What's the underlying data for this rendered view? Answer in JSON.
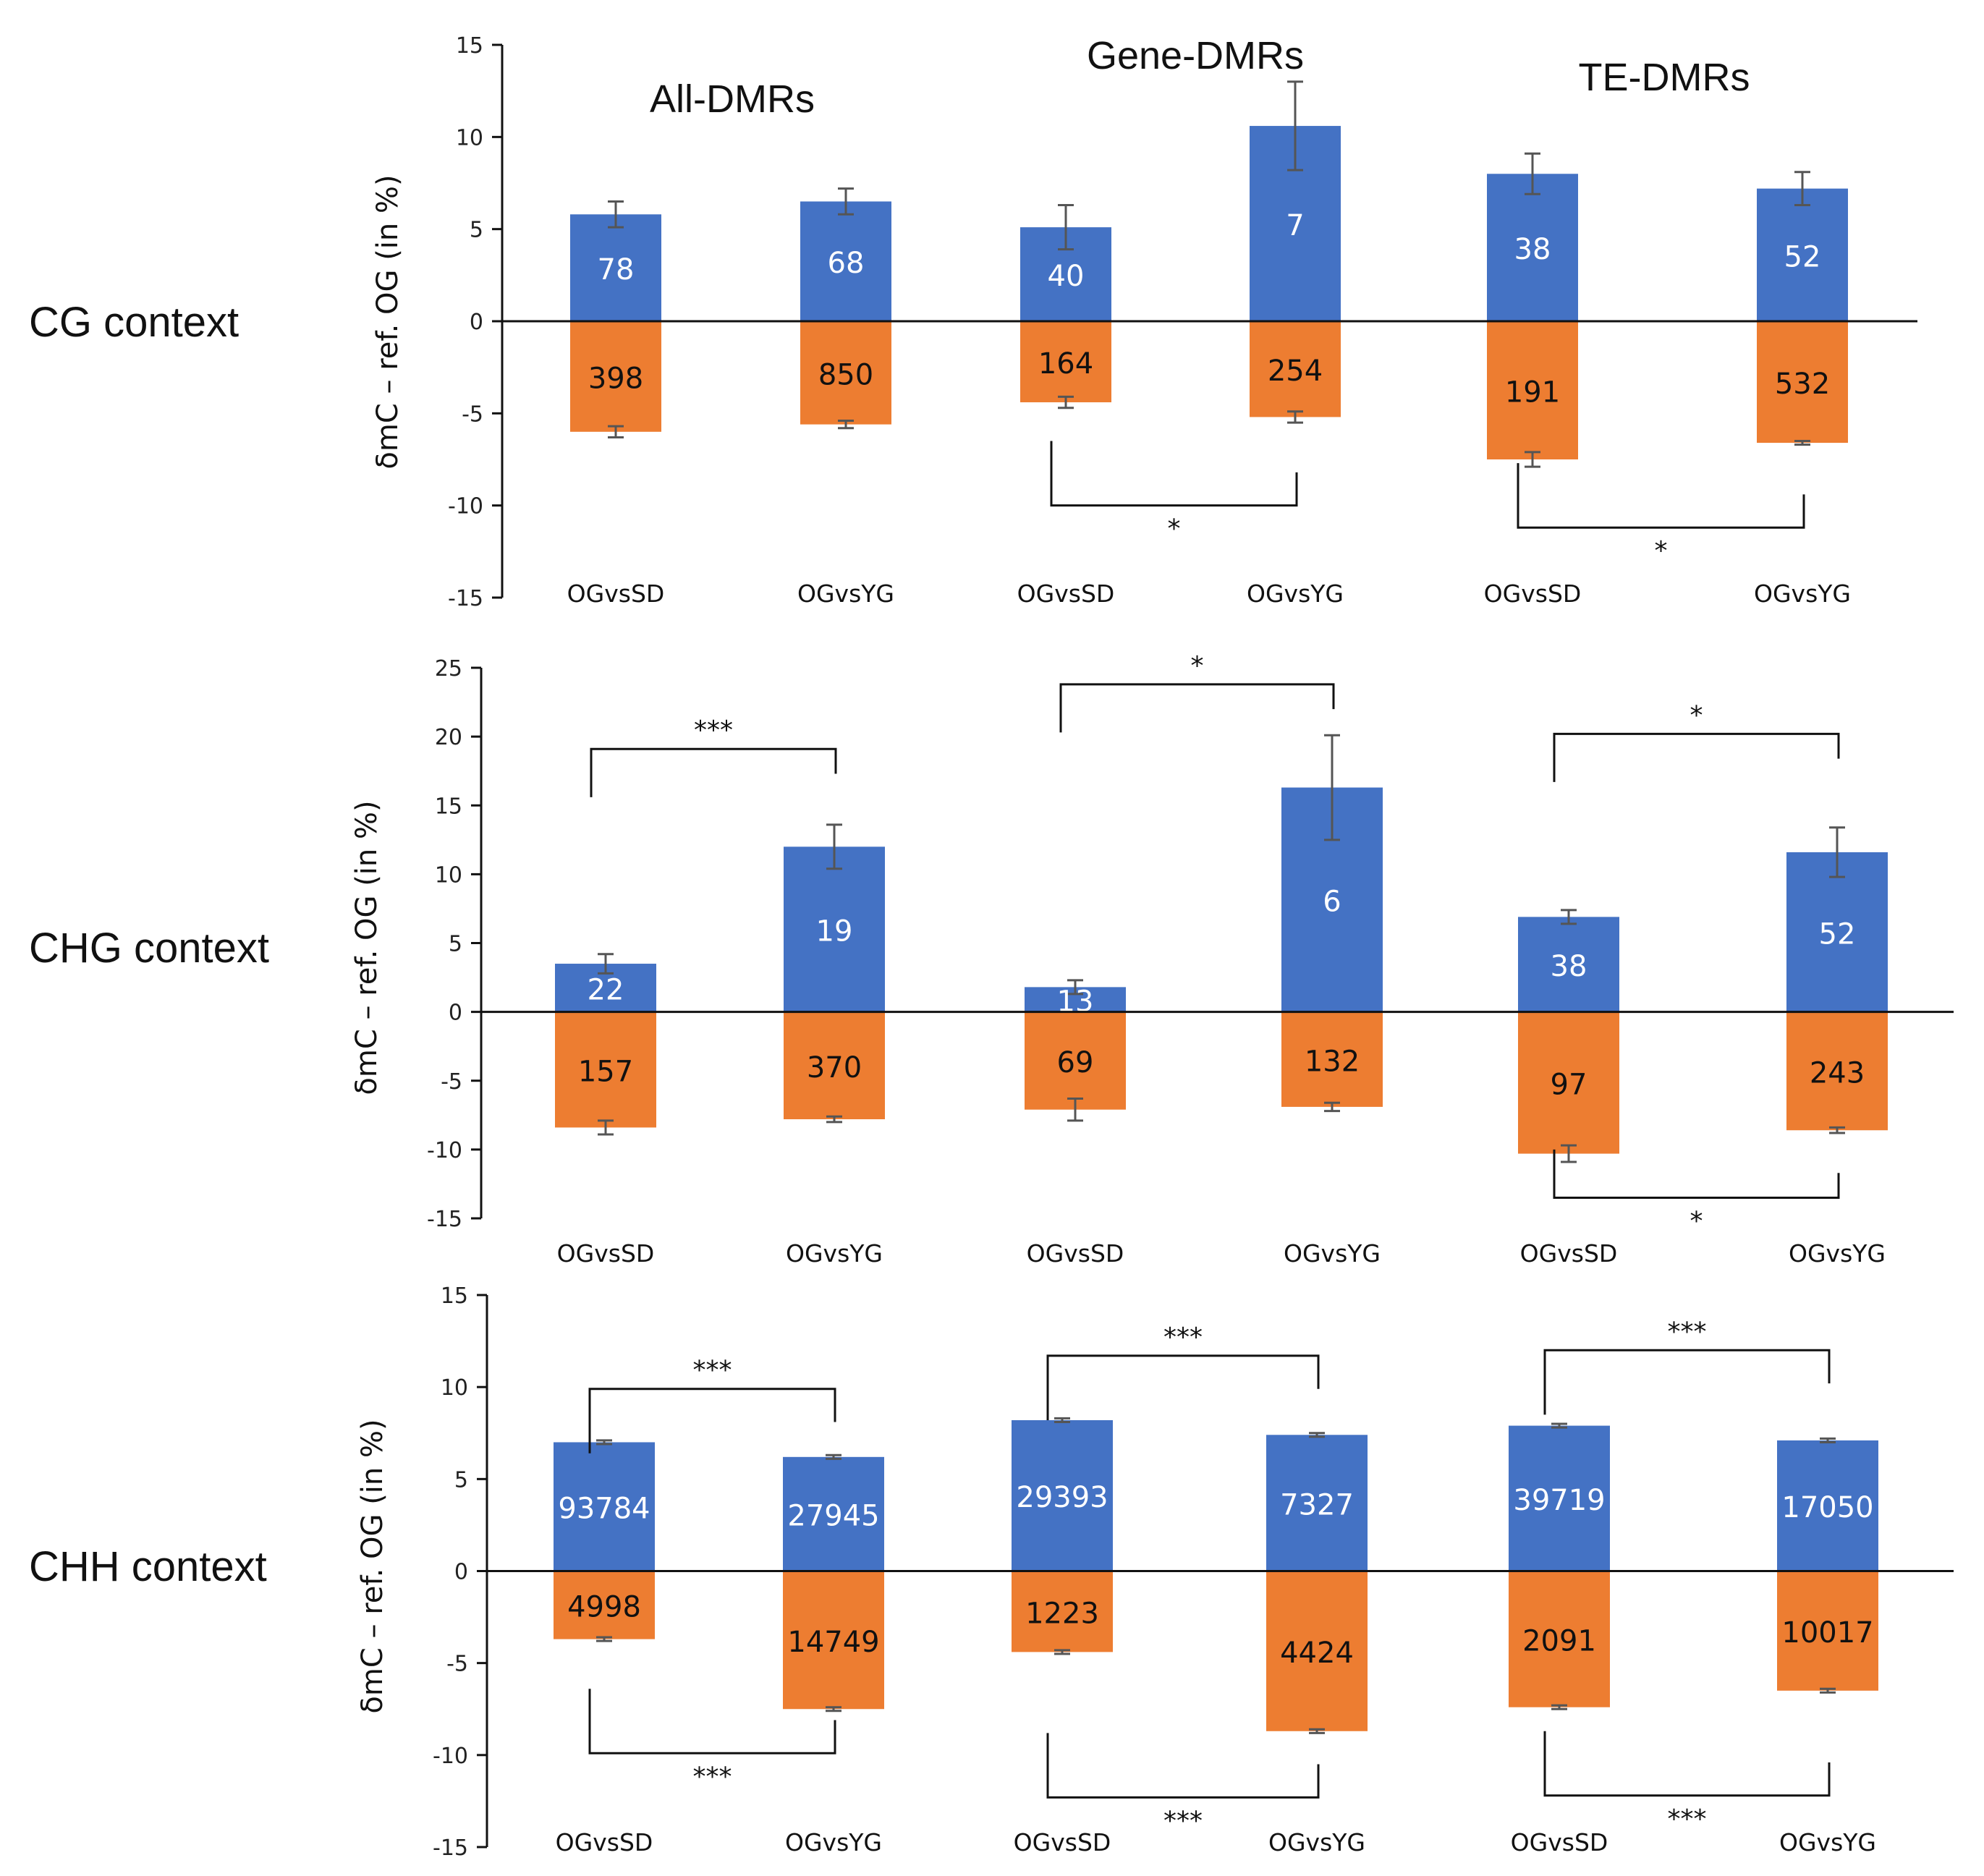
{
  "chart_data": {
    "type": "bar",
    "title": "",
    "ylabel": "δmC – ref. OG (in %)",
    "grid": false,
    "colors": {
      "hyper": "#4472C4",
      "hypo": "#ED7D31",
      "hyper_label": "#ffffff",
      "hypo_label": "#111111",
      "error_bar": "#555555"
    },
    "group_titles": [
      "All-DMRs",
      "Gene-DMRs",
      "TE-DMRs"
    ],
    "categories": [
      "OGvsSD",
      "OGvsYG",
      "OGvsSD",
      "OGvsYG",
      "OGvsSD",
      "OGvsYG"
    ],
    "panels": [
      {
        "row_label": "CG context",
        "ylim": [
          -15,
          15
        ],
        "yticks": [
          15,
          10,
          5,
          0,
          -5,
          -10,
          -15
        ],
        "series": [
          {
            "name": "hyper",
            "values": [
              5.8,
              6.5,
              5.1,
              10.6,
              8.0,
              7.2
            ],
            "errors": [
              0.7,
              0.7,
              1.2,
              2.4,
              1.1,
              0.9
            ],
            "counts": [
              "78",
              "68",
              "40",
              "7",
              "38",
              "52"
            ]
          },
          {
            "name": "hypo",
            "values": [
              -6.0,
              -5.6,
              -4.4,
              -5.2,
              -7.5,
              -6.6
            ],
            "errors": [
              0.3,
              0.2,
              0.3,
              0.3,
              0.4,
              0.1
            ],
            "counts": [
              "398",
              "850",
              "164",
              "254",
              "191",
              "532"
            ]
          }
        ],
        "significance": [
          {
            "from": 2,
            "to": 3,
            "side": "bottom",
            "label": "*",
            "level": -10
          },
          {
            "from": 4,
            "to": 5,
            "side": "bottom",
            "label": "*",
            "level": -11.2
          }
        ]
      },
      {
        "row_label": "CHG context",
        "ylim": [
          -15,
          25
        ],
        "yticks": [
          25,
          20,
          15,
          10,
          5,
          0,
          -5,
          -10,
          -15
        ],
        "series": [
          {
            "name": "hyper",
            "values": [
              3.5,
              12.0,
              1.8,
              16.3,
              6.9,
              11.6
            ],
            "errors": [
              0.7,
              1.6,
              0.5,
              3.8,
              0.5,
              1.8
            ],
            "counts": [
              "22",
              "19",
              "13",
              "6",
              "38",
              "52"
            ]
          },
          {
            "name": "hypo",
            "values": [
              -8.4,
              -7.8,
              -7.1,
              -6.9,
              -10.3,
              -8.6
            ],
            "errors": [
              0.5,
              0.2,
              0.8,
              0.3,
              0.6,
              0.2
            ],
            "counts": [
              "157",
              "370",
              "69",
              "132",
              "97",
              "243"
            ]
          }
        ],
        "significance": [
          {
            "from": 0,
            "to": 1,
            "side": "top",
            "label": "***",
            "level": 19.1
          },
          {
            "from": 2,
            "to": 3,
            "side": "top",
            "label": "*",
            "level": 23.8
          },
          {
            "from": 4,
            "to": 5,
            "side": "top",
            "label": "*",
            "level": 20.2
          },
          {
            "from": 4,
            "to": 5,
            "side": "bottom",
            "label": "*",
            "level": -13.5
          }
        ]
      },
      {
        "row_label": "CHH context",
        "ylim": [
          -15,
          15
        ],
        "yticks": [
          15,
          10,
          5,
          0,
          -5,
          -10,
          -15
        ],
        "series": [
          {
            "name": "hyper",
            "values": [
              7.0,
              6.2,
              8.2,
              7.4,
              7.9,
              7.1
            ],
            "errors": [
              0.1,
              0.1,
              0.1,
              0.1,
              0.1,
              0.1
            ],
            "counts": [
              "93784",
              "27945",
              "29393",
              "7327",
              "39719",
              "17050"
            ]
          },
          {
            "name": "hypo",
            "values": [
              -3.7,
              -7.5,
              -4.4,
              -8.7,
              -7.4,
              -6.5
            ],
            "errors": [
              0.1,
              0.1,
              0.1,
              0.1,
              0.1,
              0.1
            ],
            "counts": [
              "4998",
              "14749",
              "1223",
              "4424",
              "2091",
              "10017"
            ]
          }
        ],
        "significance": [
          {
            "from": 0,
            "to": 1,
            "side": "top",
            "label": "***",
            "level": 9.9
          },
          {
            "from": 2,
            "to": 3,
            "side": "top",
            "label": "***",
            "level": 11.7
          },
          {
            "from": 4,
            "to": 5,
            "side": "top",
            "label": "***",
            "level": 12.0
          },
          {
            "from": 0,
            "to": 1,
            "side": "bottom",
            "label": "***",
            "level": -9.9
          },
          {
            "from": 2,
            "to": 3,
            "side": "bottom",
            "label": "***",
            "level": -12.3
          },
          {
            "from": 4,
            "to": 5,
            "side": "bottom",
            "label": "***",
            "level": -12.2
          }
        ]
      }
    ]
  }
}
